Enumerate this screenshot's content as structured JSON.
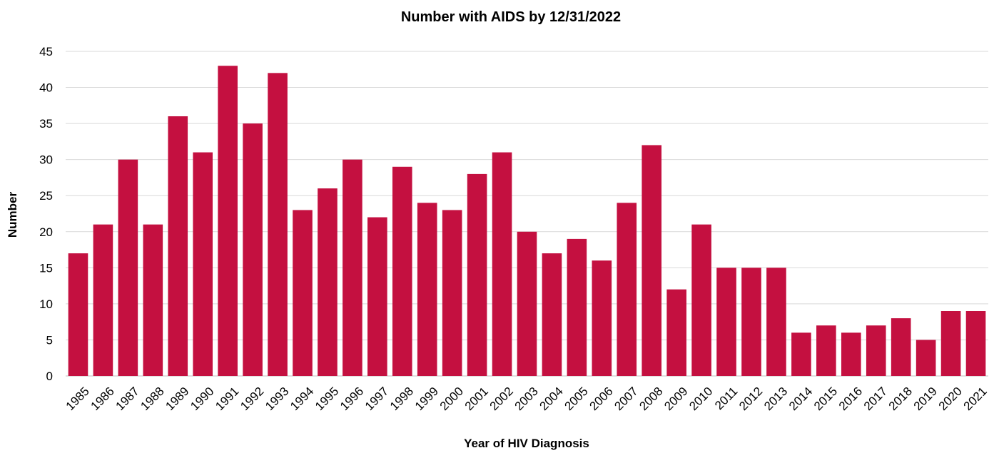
{
  "chart_data": {
    "type": "bar",
    "title": "Number with AIDS by 12/31/2022",
    "xlabel": "Year of HIV Diagnosis",
    "ylabel": "Number",
    "ylim": [
      0,
      45
    ],
    "yticks": [
      0,
      5,
      10,
      15,
      20,
      25,
      30,
      35,
      40,
      45
    ],
    "grid": true,
    "legend": "none",
    "bar_color": "#c41040",
    "categories": [
      "1985",
      "1986",
      "1987",
      "1988",
      "1989",
      "1990",
      "1991",
      "1992",
      "1993",
      "1994",
      "1995",
      "1996",
      "1997",
      "1998",
      "1999",
      "2000",
      "2001",
      "2002",
      "2003",
      "2004",
      "2005",
      "2006",
      "2007",
      "2008",
      "2009",
      "2010",
      "2011",
      "2012",
      "2013",
      "2014",
      "2015",
      "2016",
      "2017",
      "2018",
      "2019",
      "2020",
      "2021"
    ],
    "values": [
      17,
      21,
      30,
      21,
      36,
      31,
      43,
      35,
      42,
      23,
      26,
      30,
      22,
      29,
      24,
      23,
      28,
      31,
      20,
      17,
      19,
      16,
      24,
      32,
      12,
      21,
      15,
      15,
      15,
      6,
      7,
      6,
      7,
      8,
      5,
      9,
      9
    ]
  }
}
